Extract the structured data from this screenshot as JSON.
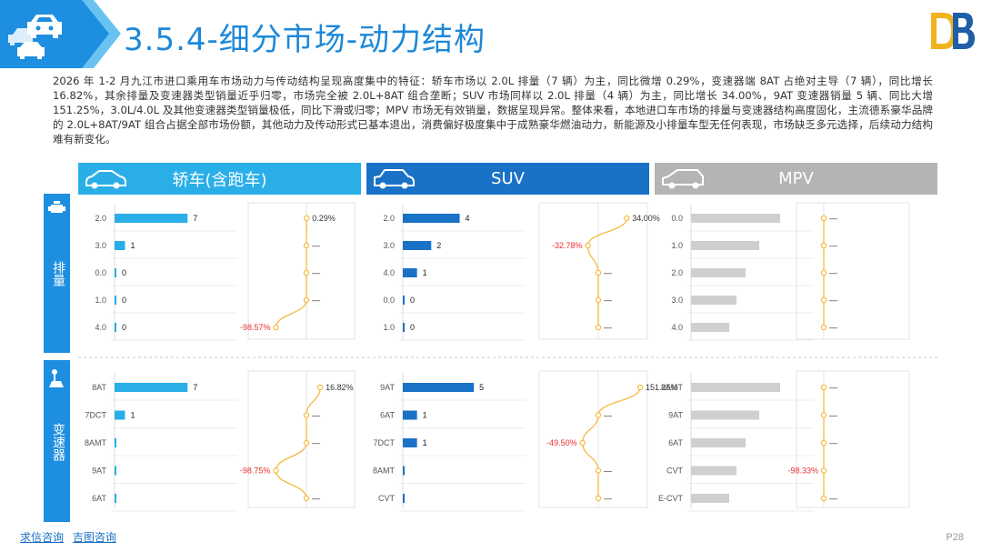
{
  "page_title": "3.5.4-细分市场-动力结构",
  "summary": "2026 年 1-2 月九江市进口乘用车市场动力与传动结构呈现高度集中的特征：轿车市场以 2.0L 排量（7 辆）为主，同比微增 0.29%，变速器端 8AT 占绝对主导（7 辆），同比增长 16.82%，其余排量及变速器类型销量近乎归零，市场完全被 2.0L+8AT 组合垄断；SUV 市场同样以 2.0L 排量（4 辆）为主，同比增长 34.00%，9AT 变速器销量 5 辆、同比大增 151.25%，3.0L/4.0L 及其他变速器类型销量极低，同比下滑或归零；MPV 市场无有效销量，数据呈现异常。整体来看，本地进口车市场的排量与变速器结构高度固化，主流德系豪华品牌的 2.0L+8AT/9AT 组合占据全部市场份额，其他动力及传动形式已基本退出，消费偏好极度集中于成熟豪华燃油动力，新能源及小排量车型无任何表现，市场缺乏多元选择，后续动力结构难有新变化。",
  "segments": [
    {
      "label": "轿车(含跑车)",
      "color": "#29aee8"
    },
    {
      "label": "SUV",
      "color": "#1a72c7"
    },
    {
      "label": "MPV",
      "color": "#b4b4b4"
    }
  ],
  "row_labels": {
    "displacement": "排量",
    "transmission": "变速器"
  },
  "colors": {
    "sedan": "#29aee8",
    "suv": "#1a72c7",
    "mpv": "#cfcfcf",
    "line": "#f5b93e",
    "negative": "#e8302f"
  },
  "chart_data": [
    {
      "type": "bar",
      "segment": "轿车(含跑车)",
      "dimension": "排量",
      "categories": [
        "2.0",
        "3.0",
        "0.0",
        "1.0",
        "4.0"
      ],
      "values": [
        7,
        1,
        0,
        0,
        0
      ],
      "value_labels": [
        "7",
        "1",
        "0",
        "0",
        "0"
      ],
      "xlim": [
        0,
        7.5
      ]
    },
    {
      "type": "line",
      "segment": "轿车(含跑车)",
      "dimension": "排量",
      "name": "同比",
      "values": [
        0.29,
        null,
        null,
        null,
        -98.57
      ],
      "labels": [
        "0.29%",
        "—",
        "—",
        "—",
        "-98.57%"
      ]
    },
    {
      "type": "bar",
      "segment": "SUV",
      "dimension": "排量",
      "categories": [
        "2.0",
        "3.0",
        "4.0",
        "0.0",
        "1.0"
      ],
      "values": [
        4,
        2,
        1,
        0,
        0
      ],
      "value_labels": [
        "4",
        "2",
        "1",
        "0",
        "0"
      ],
      "xlim": [
        0,
        5.5
      ]
    },
    {
      "type": "line",
      "segment": "SUV",
      "dimension": "排量",
      "name": "同比",
      "values": [
        34.0,
        -32.78,
        null,
        null,
        null
      ],
      "labels": [
        "34.00%",
        "-32.78%",
        "—",
        "—",
        "—"
      ]
    },
    {
      "type": "bar",
      "segment": "MPV",
      "dimension": "排量",
      "categories": [
        "0.0",
        "1.0",
        "2.0",
        "3.0",
        "4.0"
      ],
      "values": [
        null,
        null,
        null,
        null,
        null
      ],
      "value_labels": [
        "",
        "",
        "",
        "",
        ""
      ]
    },
    {
      "type": "line",
      "segment": "MPV",
      "dimension": "排量",
      "name": "同比",
      "values": [
        null,
        null,
        null,
        null,
        null
      ],
      "labels": [
        "—",
        "—",
        "—",
        "—",
        "—"
      ]
    },
    {
      "type": "bar",
      "segment": "轿车(含跑车)",
      "dimension": "变速器",
      "categories": [
        "8AT",
        "7DCT",
        "8AMT",
        "9AT",
        "6AT"
      ],
      "values": [
        7,
        1,
        0,
        0,
        0
      ],
      "value_labels": [
        "7",
        "1",
        "",
        "",
        ""
      ],
      "xlim": [
        0,
        7.5
      ]
    },
    {
      "type": "line",
      "segment": "轿车(含跑车)",
      "dimension": "变速器",
      "name": "同比",
      "values": [
        16.82,
        null,
        null,
        -98.75,
        null
      ],
      "labels": [
        "16.82%",
        "—",
        "—",
        "-98.75%",
        "—"
      ]
    },
    {
      "type": "bar",
      "segment": "SUV",
      "dimension": "变速器",
      "categories": [
        "9AT",
        "6AT",
        "7DCT",
        "8AMT",
        "CVT"
      ],
      "values": [
        5,
        1,
        1,
        0,
        0
      ],
      "value_labels": [
        "5",
        "1",
        "1",
        "",
        ""
      ],
      "xlim": [
        0,
        5.5
      ]
    },
    {
      "type": "line",
      "segment": "SUV",
      "dimension": "变速器",
      "name": "同比",
      "values": [
        151.25,
        null,
        -49.5,
        null,
        null
      ],
      "labels": [
        "151.25%",
        "—",
        "-49.50%",
        "—",
        "—"
      ]
    },
    {
      "type": "bar",
      "segment": "MPV",
      "dimension": "变速器",
      "categories": [
        "8AMT",
        "9AT",
        "6AT",
        "CVT",
        "E-CVT"
      ],
      "values": [
        null,
        null,
        null,
        null,
        null
      ],
      "value_labels": [
        "",
        "",
        "",
        "",
        ""
      ]
    },
    {
      "type": "line",
      "segment": "MPV",
      "dimension": "变速器",
      "name": "同比",
      "values": [
        null,
        null,
        null,
        -98.33,
        null
      ],
      "labels": [
        "—",
        "—",
        "—",
        "-98.33%",
        "—"
      ]
    }
  ],
  "footer_links": [
    "求信咨询",
    "吉图咨询"
  ],
  "page_number": "P28"
}
